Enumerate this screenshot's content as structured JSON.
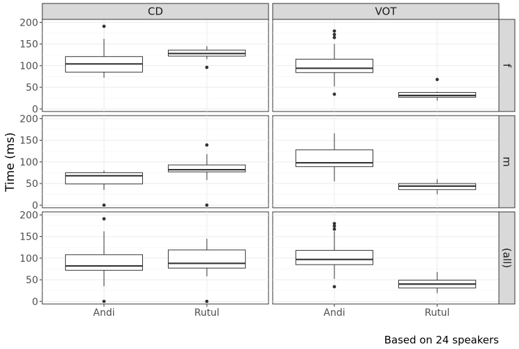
{
  "chart_data": {
    "type": "boxplot",
    "ylabel": "Time (ms)",
    "xlabel": "",
    "caption": "Based on 24 speakers",
    "categories": [
      "Andi",
      "Rutul"
    ],
    "yticks": [
      0,
      50,
      100,
      150,
      200
    ],
    "ylim": [
      -6,
      207
    ],
    "columns": [
      "CD",
      "VOT"
    ],
    "rows": [
      "f",
      "m",
      "(all)"
    ],
    "grid": true,
    "panels": [
      {
        "column": "CD",
        "row": "f",
        "boxes": [
          {
            "category": "Andi",
            "whisker_low": 72,
            "q1": 85,
            "median": 104,
            "q3": 121,
            "whisker_high": 162,
            "outliers": [
              191
            ]
          },
          {
            "category": "Rutul",
            "whisker_low": 115,
            "q1": 122,
            "median": 128,
            "q3": 136,
            "whisker_high": 145,
            "outliers": [
              96
            ]
          }
        ]
      },
      {
        "column": "VOT",
        "row": "f",
        "boxes": [
          {
            "category": "Andi",
            "whisker_low": 52,
            "q1": 84,
            "median": 94,
            "q3": 115,
            "whisker_high": 150,
            "outliers": [
              34,
              165,
              172,
              180
            ]
          },
          {
            "category": "Rutul",
            "whisker_low": 19,
            "q1": 27,
            "median": 31,
            "q3": 38,
            "whisker_high": 40,
            "outliers": [
              68
            ]
          }
        ]
      },
      {
        "column": "CD",
        "row": "m",
        "boxes": [
          {
            "category": "Andi",
            "whisker_low": 35,
            "q1": 49,
            "median": 68,
            "q3": 75,
            "whisker_high": 80,
            "outliers": [
              0
            ]
          },
          {
            "category": "Rutul",
            "whisker_low": 58,
            "q1": 77,
            "median": 82,
            "q3": 93,
            "whisker_high": 118,
            "outliers": [
              0,
              139
            ]
          }
        ]
      },
      {
        "column": "VOT",
        "row": "m",
        "boxes": [
          {
            "category": "Andi",
            "whisker_low": 55,
            "q1": 89,
            "median": 98,
            "q3": 128,
            "whisker_high": 166,
            "outliers": []
          },
          {
            "category": "Rutul",
            "whisker_low": 25,
            "q1": 36,
            "median": 44,
            "q3": 50,
            "whisker_high": 60,
            "outliers": []
          }
        ]
      },
      {
        "column": "CD",
        "row": "(all)",
        "boxes": [
          {
            "category": "Andi",
            "whisker_low": 35,
            "q1": 72,
            "median": 82,
            "q3": 108,
            "whisker_high": 162,
            "outliers": [
              0,
              191
            ]
          },
          {
            "category": "Rutul",
            "whisker_low": 58,
            "q1": 77,
            "median": 88,
            "q3": 119,
            "whisker_high": 145,
            "outliers": [
              0
            ]
          }
        ]
      },
      {
        "column": "VOT",
        "row": "(all)",
        "boxes": [
          {
            "category": "Andi",
            "whisker_low": 52,
            "q1": 85,
            "median": 97,
            "q3": 118,
            "whisker_high": 162,
            "outliers": [
              34,
              167,
              174,
              180
            ]
          },
          {
            "category": "Rutul",
            "whisker_low": 19,
            "q1": 31,
            "median": 40,
            "q3": 49,
            "whisker_high": 68,
            "outliers": []
          }
        ]
      }
    ]
  }
}
